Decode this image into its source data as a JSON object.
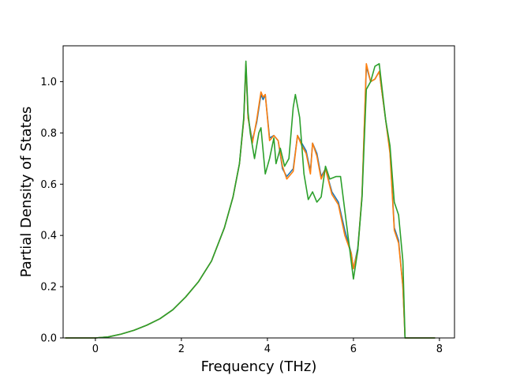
{
  "chart_data": {
    "type": "line",
    "title": "",
    "xlabel": "Frequency (THz)",
    "ylabel": "Partial Density of States",
    "xlim": [
      -0.75,
      8.35
    ],
    "ylim": [
      0.0,
      1.14
    ],
    "xticks": [
      0,
      2,
      4,
      6,
      8
    ],
    "xtick_labels": [
      "0",
      "2",
      "4",
      "6",
      "8"
    ],
    "yticks": [
      0.0,
      0.2,
      0.4,
      0.6,
      0.8,
      1.0
    ],
    "ytick_labels": [
      "0.0",
      "0.2",
      "0.4",
      "0.6",
      "0.8",
      "1.0"
    ],
    "grid": false,
    "legend": "none",
    "series": [
      {
        "color": "#1f77b4",
        "x": [
          -0.7,
          0.0,
          0.3,
          0.6,
          0.9,
          1.2,
          1.5,
          1.8,
          2.1,
          2.4,
          2.7,
          3.0,
          3.2,
          3.35,
          3.45,
          3.5,
          3.55,
          3.65,
          3.75,
          3.85,
          3.9,
          3.95,
          4.05,
          4.15,
          4.25,
          4.35,
          4.45,
          4.6,
          4.7,
          4.8,
          4.9,
          5.0,
          5.05,
          5.15,
          5.25,
          5.35,
          5.5,
          5.65,
          5.8,
          5.95,
          6.0,
          6.1,
          6.2,
          6.3,
          6.4,
          6.5,
          6.6,
          6.75,
          6.85,
          6.95,
          7.05,
          7.15,
          7.2,
          7.3,
          7.9
        ],
        "y": [
          0.0,
          0.0,
          0.004,
          0.015,
          0.03,
          0.05,
          0.075,
          0.11,
          0.16,
          0.22,
          0.3,
          0.43,
          0.55,
          0.68,
          0.85,
          1.06,
          0.86,
          0.77,
          0.84,
          0.95,
          0.93,
          0.95,
          0.78,
          0.79,
          0.77,
          0.66,
          0.63,
          0.66,
          0.79,
          0.76,
          0.73,
          0.65,
          0.76,
          0.72,
          0.63,
          0.66,
          0.57,
          0.53,
          0.42,
          0.33,
          0.27,
          0.35,
          0.55,
          1.06,
          1.0,
          1.01,
          1.04,
          0.85,
          0.73,
          0.43,
          0.38,
          0.2,
          0.0,
          0.0,
          0.0
        ]
      },
      {
        "color": "#ff7f0e",
        "x": [
          -0.7,
          0.0,
          0.3,
          0.6,
          0.9,
          1.2,
          1.5,
          1.8,
          2.1,
          2.4,
          2.7,
          3.0,
          3.2,
          3.35,
          3.45,
          3.5,
          3.55,
          3.65,
          3.75,
          3.85,
          3.9,
          3.95,
          4.05,
          4.15,
          4.25,
          4.35,
          4.45,
          4.6,
          4.7,
          4.8,
          4.9,
          5.0,
          5.05,
          5.15,
          5.25,
          5.35,
          5.5,
          5.65,
          5.8,
          5.95,
          6.0,
          6.1,
          6.2,
          6.3,
          6.4,
          6.5,
          6.6,
          6.75,
          6.85,
          6.95,
          7.05,
          7.15,
          7.2,
          7.3,
          7.9
        ],
        "y": [
          0.0,
          0.0,
          0.004,
          0.015,
          0.03,
          0.05,
          0.075,
          0.11,
          0.16,
          0.22,
          0.3,
          0.43,
          0.55,
          0.68,
          0.85,
          1.07,
          0.86,
          0.76,
          0.85,
          0.96,
          0.94,
          0.95,
          0.77,
          0.79,
          0.77,
          0.67,
          0.62,
          0.65,
          0.79,
          0.75,
          0.72,
          0.64,
          0.76,
          0.71,
          0.62,
          0.66,
          0.56,
          0.52,
          0.4,
          0.33,
          0.27,
          0.34,
          0.56,
          1.07,
          1.0,
          1.01,
          1.04,
          0.85,
          0.72,
          0.42,
          0.37,
          0.2,
          0.0,
          0.0,
          0.0
        ]
      },
      {
        "color": "#2ca02c",
        "x": [
          -0.7,
          0.0,
          0.3,
          0.6,
          0.9,
          1.2,
          1.5,
          1.8,
          2.1,
          2.4,
          2.7,
          3.0,
          3.2,
          3.35,
          3.45,
          3.5,
          3.55,
          3.6,
          3.7,
          3.8,
          3.85,
          3.95,
          4.05,
          4.15,
          4.2,
          4.3,
          4.4,
          4.5,
          4.6,
          4.65,
          4.75,
          4.85,
          4.95,
          5.05,
          5.15,
          5.25,
          5.35,
          5.45,
          5.6,
          5.7,
          5.85,
          6.0,
          6.1,
          6.2,
          6.3,
          6.4,
          6.5,
          6.6,
          6.75,
          6.85,
          6.95,
          7.05,
          7.15,
          7.2,
          7.3,
          7.9
        ],
        "y": [
          0.0,
          0.0,
          0.004,
          0.015,
          0.03,
          0.05,
          0.075,
          0.11,
          0.16,
          0.22,
          0.3,
          0.43,
          0.55,
          0.68,
          0.86,
          1.08,
          0.88,
          0.8,
          0.7,
          0.8,
          0.82,
          0.64,
          0.7,
          0.78,
          0.68,
          0.74,
          0.67,
          0.7,
          0.9,
          0.95,
          0.86,
          0.64,
          0.54,
          0.57,
          0.53,
          0.55,
          0.67,
          0.62,
          0.63,
          0.63,
          0.43,
          0.23,
          0.34,
          0.55,
          0.97,
          1.0,
          1.06,
          1.07,
          0.85,
          0.75,
          0.53,
          0.48,
          0.3,
          0.0,
          0.0,
          0.0
        ]
      }
    ]
  }
}
